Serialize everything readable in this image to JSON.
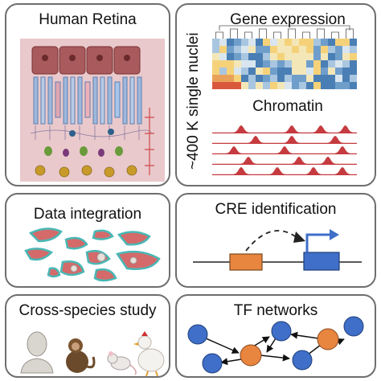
{
  "panels": {
    "retina": {
      "title": "Human Retina"
    },
    "gene": {
      "title": "Gene expression",
      "side_label": "~400 K single nuclei",
      "chromatin_title": "Chromatin"
    },
    "integration": {
      "title": "Data integration"
    },
    "cre": {
      "title": "CRE identification"
    },
    "cross_species": {
      "title": "Cross-species study",
      "species_icons": [
        "human-icon",
        "monkey-icon",
        "mouse-icon",
        "chicken-icon"
      ]
    },
    "tf": {
      "title": "TF networks"
    }
  },
  "colors": {
    "border": "#6e6e6e",
    "retina_bg": "#e9c9cc",
    "rpe": "#a85a5c",
    "rod": "#9db8dc",
    "chromatin": "#c53b3f",
    "cre_orange": "#e8853e",
    "cre_blue": "#3f6fc8",
    "tf_orange": "#e8853e",
    "tf_blue": "#3f6fc8",
    "integration_red": "#d46a6a",
    "integration_teal": "#49b8b5"
  }
}
